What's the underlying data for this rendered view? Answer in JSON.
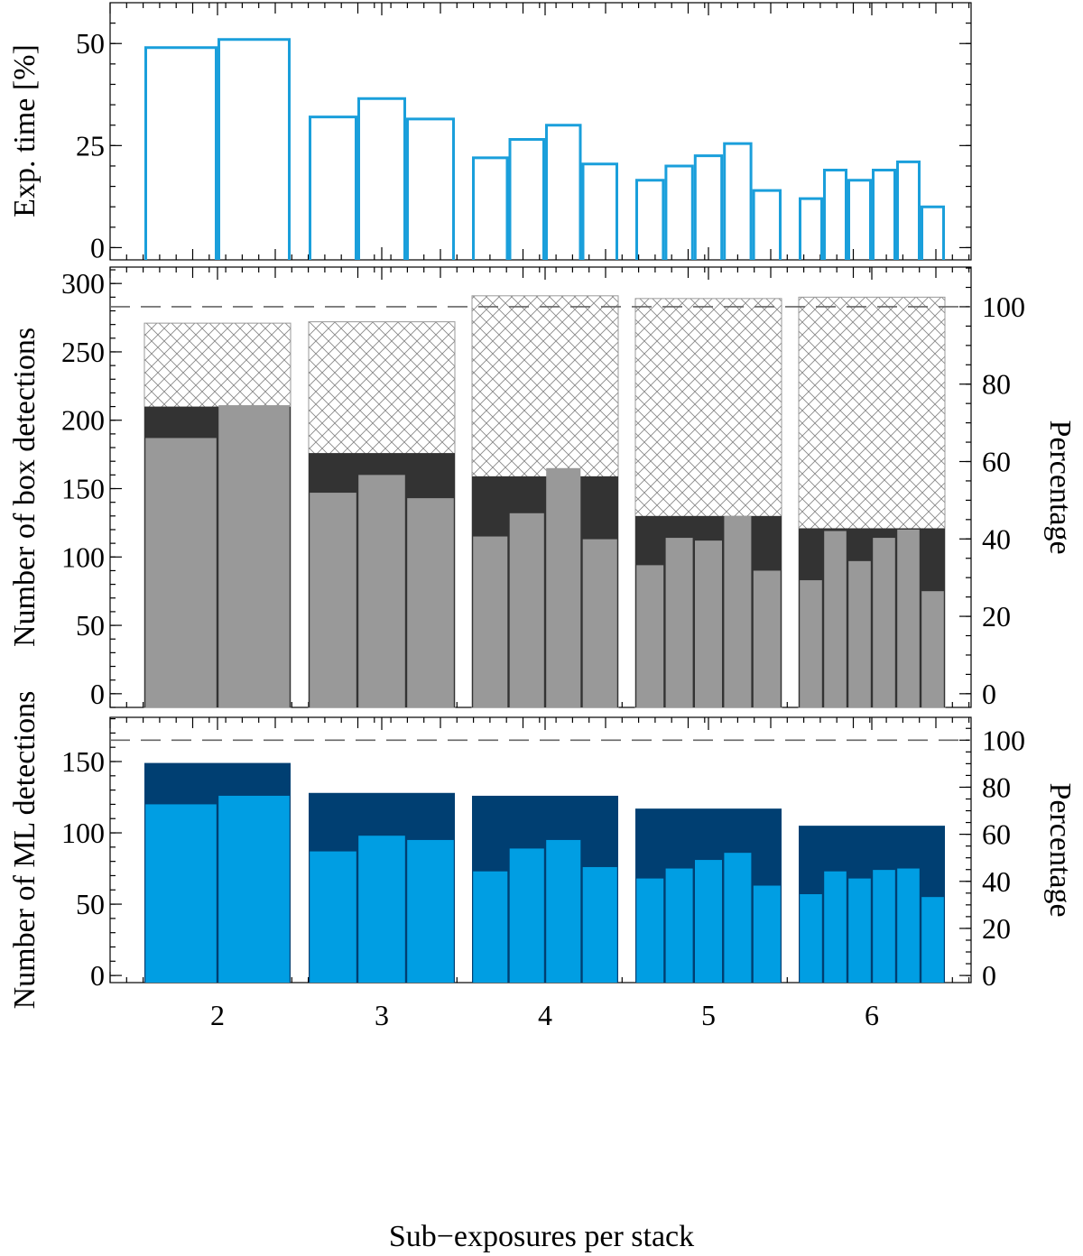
{
  "chart_data": [
    {
      "type": "bar",
      "panel": "top",
      "ylabel": "Exp. time [%]",
      "ylim": [
        -3,
        60
      ],
      "yticks": [
        0,
        25,
        50
      ],
      "groups": [
        {
          "label": "2",
          "values": [
            49,
            51
          ]
        },
        {
          "label": "3",
          "values": [
            32,
            36.5,
            31.5
          ]
        },
        {
          "label": "4",
          "values": [
            22,
            26.5,
            30,
            20.5
          ]
        },
        {
          "label": "5",
          "values": [
            16.5,
            20,
            22.5,
            25.5,
            14
          ]
        },
        {
          "label": "6",
          "values": [
            12,
            19,
            16.5,
            19,
            21,
            10
          ]
        }
      ],
      "colors": {
        "outline": "#1A9FDB"
      }
    },
    {
      "type": "bar",
      "panel": "middle",
      "ylabel": "Number of box detections",
      "ylabel_right": "Percentage",
      "ylim": [
        -10,
        312
      ],
      "yticks": [
        0,
        50,
        100,
        150,
        200,
        250,
        300
      ],
      "right_yticks": [
        0,
        20,
        40,
        60,
        80,
        100
      ],
      "reference_line": 283,
      "groups": [
        {
          "label": "2",
          "hatched_total": 271,
          "stack_total": 210,
          "sub_values": [
            187,
            211
          ]
        },
        {
          "label": "3",
          "hatched_total": 272,
          "stack_total": 176,
          "sub_values": [
            147,
            160,
            143
          ]
        },
        {
          "label": "4",
          "hatched_total": 291,
          "stack_total": 159,
          "sub_values": [
            115,
            132,
            165,
            113
          ]
        },
        {
          "label": "5",
          "hatched_total": 289,
          "stack_total": 130,
          "sub_values": [
            94,
            114,
            112,
            130,
            90
          ]
        },
        {
          "label": "6",
          "hatched_total": 290,
          "stack_total": 121,
          "sub_values": [
            83,
            119,
            97,
            114,
            120,
            75
          ]
        }
      ],
      "colors": {
        "stack": "#333333",
        "sub": "#999999",
        "hatch": "#888888",
        "line": "#666666"
      }
    },
    {
      "type": "bar",
      "panel": "bottom",
      "xlabel": "Sub−exposures per stack",
      "ylabel": "Number of ML detections",
      "ylabel_right": "Percentage",
      "ylim": [
        -5,
        181
      ],
      "yticks": [
        0,
        50,
        100,
        150
      ],
      "right_yticks": [
        0,
        20,
        40,
        60,
        80,
        100
      ],
      "reference_line": 165,
      "xtick_labels": [
        "2",
        "3",
        "4",
        "5",
        "6"
      ],
      "groups": [
        {
          "label": "2",
          "stack_total": 149,
          "sub_values": [
            120,
            126
          ]
        },
        {
          "label": "3",
          "stack_total": 128,
          "sub_values": [
            87,
            98,
            95
          ]
        },
        {
          "label": "4",
          "stack_total": 126,
          "sub_values": [
            73,
            89,
            95,
            76
          ]
        },
        {
          "label": "5",
          "stack_total": 117,
          "sub_values": [
            68,
            75,
            81,
            86,
            63
          ]
        },
        {
          "label": "6",
          "stack_total": 105,
          "sub_values": [
            57,
            73,
            68,
            74,
            75,
            55
          ]
        }
      ],
      "colors": {
        "stack": "#003F72",
        "sub": "#009EE3",
        "line": "#666666"
      }
    }
  ]
}
